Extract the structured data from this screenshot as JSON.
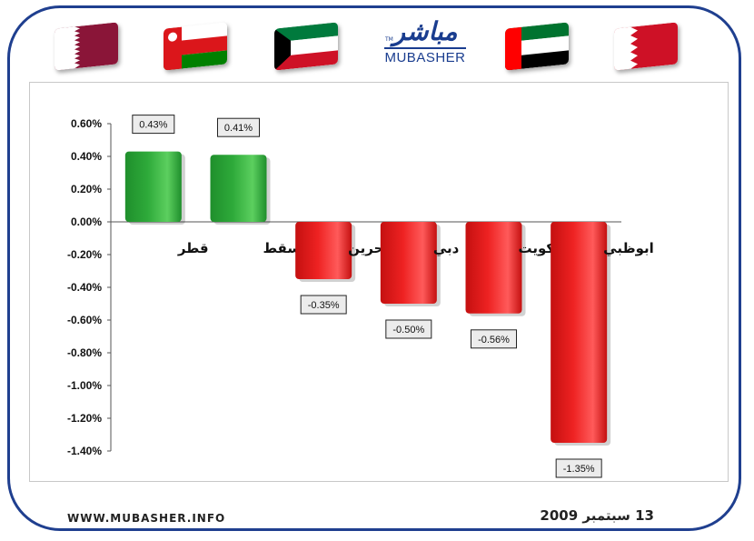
{
  "header": {
    "logo_ar": "مباشر",
    "logo_en": "MUBASHER",
    "logo_tm": "TM",
    "flags": [
      {
        "name": "qatar-flag-icon",
        "colors": [
          "#ffffff",
          "#8a1538"
        ]
      },
      {
        "name": "oman-flag-icon",
        "colors": [
          "#db161b",
          "#ffffff",
          "#008000"
        ]
      },
      {
        "name": "kuwait-flag-icon",
        "colors": [
          "#007a3d",
          "#ffffff",
          "#ce1126",
          "#000000"
        ]
      },
      {
        "name": "uae-flag-icon",
        "colors": [
          "#00732f",
          "#ffffff",
          "#000000",
          "#ff0000"
        ]
      },
      {
        "name": "bahrain-flag-icon",
        "colors": [
          "#ffffff",
          "#ce1126"
        ]
      }
    ]
  },
  "chart_data": {
    "type": "bar",
    "categories": [
      "قطر",
      "مسقط",
      "البحرين",
      "دبي",
      "الكويت",
      "ابوظبي"
    ],
    "values": [
      0.43,
      0.41,
      -0.35,
      -0.5,
      -0.56,
      -1.35
    ],
    "data_labels": [
      "0.43%",
      "0.41%",
      "-0.35%",
      "-0.50%",
      "-0.56%",
      "-1.35%"
    ],
    "y_ticks": [
      "0.60%",
      "0.40%",
      "0.20%",
      "0.00%",
      "-0.20%",
      "-0.40%",
      "-0.60%",
      "-0.80%",
      "-1.00%",
      "-1.20%",
      "-1.40%"
    ],
    "ylim": [
      -1.4,
      0.6
    ],
    "positive_color": "#2eaa3a",
    "negative_color": "#ee2222",
    "grid": false
  },
  "footer": {
    "website": "WWW.MUBASHER.INFO",
    "date": "13 سبتمبر 2009"
  }
}
